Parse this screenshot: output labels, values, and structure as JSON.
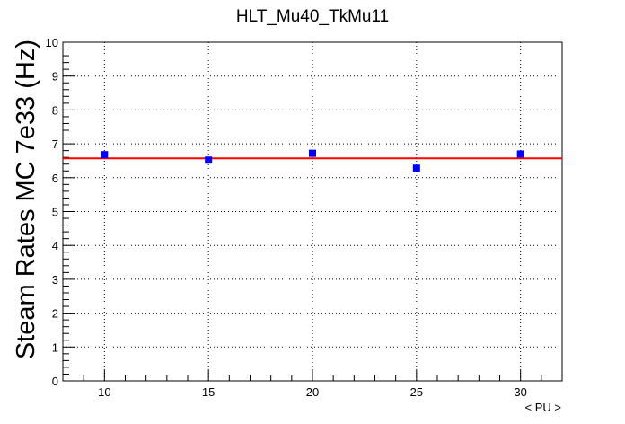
{
  "chart_data": {
    "type": "scatter",
    "title": "HLT_Mu40_TkMu11",
    "xlabel": "< PU >",
    "ylabel": "Steam Rates MC 7e33 (Hz)",
    "xlim": [
      8,
      32
    ],
    "ylim": [
      0,
      10
    ],
    "x_ticks": [
      10,
      15,
      20,
      25,
      30
    ],
    "y_ticks": [
      0,
      1,
      2,
      3,
      4,
      5,
      6,
      7,
      8,
      9,
      10
    ],
    "grid": true,
    "series": [
      {
        "x": [
          10,
          15,
          20,
          25,
          30
        ],
        "y": [
          6.68,
          6.52,
          6.72,
          6.28,
          6.7
        ],
        "color": "#0000ff",
        "marker": "square"
      }
    ],
    "fit": {
      "type": "constant",
      "value": 6.57,
      "color": "#ff0000"
    }
  }
}
